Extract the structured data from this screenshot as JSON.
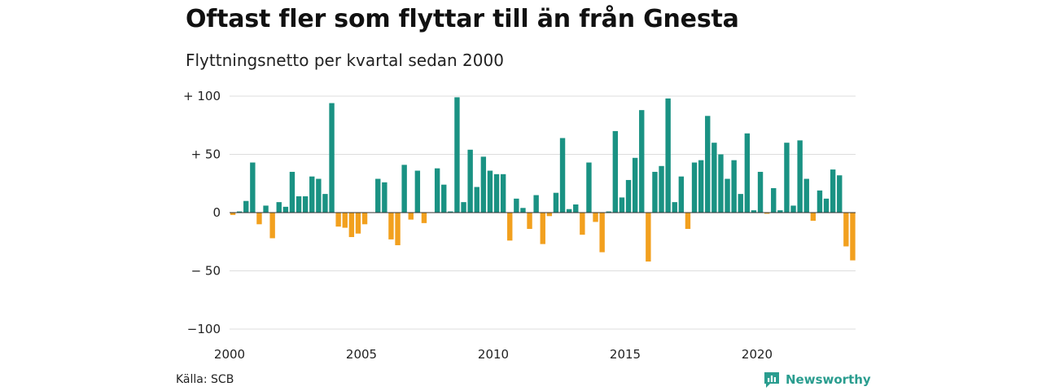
{
  "header": {
    "title": "Oftast fler som flyttar till än från Gnesta",
    "subtitle": "Flyttningsnetto per kvartal sedan 2000"
  },
  "footer": {
    "source": "Källa: SCB",
    "brand": "Newsworthy",
    "brand_icon": "newsworthy-logo-icon"
  },
  "colors": {
    "positive": "#1a9283",
    "negative": "#f2a01e",
    "grid": "#dddddd",
    "brand": "#2a9d8f"
  },
  "chart_data": {
    "type": "bar",
    "xlabel": "",
    "ylabel": "",
    "ylim": [
      -100,
      100
    ],
    "y_ticks": [
      {
        "value": 100,
        "label": "+ 100"
      },
      {
        "value": 50,
        "label": "+  50"
      },
      {
        "value": 0,
        "label": "0"
      },
      {
        "value": -50,
        "label": "− 50"
      },
      {
        "value": -100,
        "label": "−100"
      }
    ],
    "x_ticks": [
      "2000",
      "2005",
      "2010",
      "2015",
      "2020"
    ],
    "x_tick_years": [
      2000,
      2005,
      2010,
      2015,
      2020
    ],
    "start_year": 2000,
    "grid": true,
    "values": [
      -2,
      1,
      10,
      43,
      -10,
      6,
      -22,
      9,
      5,
      35,
      14,
      14,
      31,
      29,
      16,
      94,
      -12,
      -13,
      -21,
      -18,
      -10,
      0,
      29,
      26,
      -23,
      -28,
      41,
      -6,
      36,
      -9,
      0,
      38,
      24,
      1,
      99,
      9,
      54,
      22,
      48,
      36,
      33,
      33,
      -24,
      12,
      4,
      -14,
      15,
      -27,
      -3,
      17,
      64,
      3,
      7,
      -19,
      43,
      -8,
      -34,
      1,
      70,
      13,
      28,
      47,
      88,
      -42,
      35,
      40,
      98,
      9,
      31,
      -14,
      43,
      45,
      83,
      60,
      50,
      29,
      45,
      16,
      68,
      2,
      35,
      -1,
      21,
      2,
      60,
      6,
      62,
      29,
      -7,
      19,
      12,
      37,
      32,
      -29,
      -41
    ]
  }
}
